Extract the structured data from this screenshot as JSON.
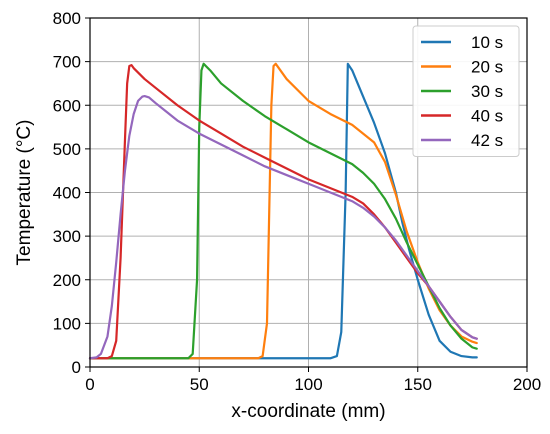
{
  "chart_data": {
    "type": "line",
    "title": "",
    "xlabel": "x-coordinate (mm)",
    "ylabel": "Temperature (°C)",
    "xlim": [
      0,
      200
    ],
    "ylim": [
      0,
      800
    ],
    "xticks": [
      0,
      50,
      100,
      150,
      200
    ],
    "yticks": [
      0,
      100,
      200,
      300,
      400,
      500,
      600,
      700,
      800
    ],
    "grid": true,
    "legend_position": "top-right",
    "series": [
      {
        "name": "10 s",
        "color": "#1f77b4",
        "x": [
          0,
          100,
          110,
          113,
          115,
          117,
          118,
          120,
          125,
          130,
          135,
          140,
          143,
          146,
          150,
          155,
          160,
          165,
          170,
          175,
          177
        ],
        "y": [
          20,
          20,
          20,
          25,
          80,
          400,
          695,
          680,
          620,
          560,
          490,
          400,
          330,
          270,
          200,
          120,
          60,
          35,
          25,
          22,
          22
        ]
      },
      {
        "name": "20 s",
        "color": "#ff7f0e",
        "x": [
          0,
          70,
          77,
          79,
          81,
          82,
          83,
          84,
          85,
          90,
          100,
          110,
          120,
          130,
          135,
          140,
          145,
          150,
          155,
          160,
          165,
          170,
          175,
          177
        ],
        "y": [
          20,
          20,
          20,
          25,
          100,
          350,
          600,
          690,
          695,
          660,
          610,
          580,
          555,
          515,
          470,
          395,
          310,
          240,
          180,
          130,
          95,
          70,
          58,
          55
        ]
      },
      {
        "name": "30 s",
        "color": "#2ca02c",
        "x": [
          0,
          40,
          45,
          47,
          49,
          50,
          51,
          52,
          55,
          60,
          70,
          80,
          90,
          100,
          110,
          120,
          125,
          130,
          135,
          140,
          145,
          150,
          155,
          160,
          165,
          170,
          175,
          177
        ],
        "y": [
          20,
          20,
          20,
          30,
          200,
          550,
          680,
          695,
          680,
          650,
          610,
          575,
          545,
          515,
          490,
          465,
          445,
          420,
          385,
          340,
          285,
          235,
          185,
          135,
          95,
          65,
          45,
          42
        ]
      },
      {
        "name": "40 s",
        "color": "#d62728",
        "x": [
          0,
          8,
          10,
          12,
          14,
          16,
          17,
          18,
          19,
          20,
          25,
          30,
          40,
          50,
          60,
          70,
          80,
          90,
          100,
          110,
          120,
          125,
          130,
          135,
          140,
          145,
          150,
          155,
          160,
          165,
          170,
          175,
          177
        ],
        "y": [
          20,
          20,
          25,
          60,
          250,
          520,
          650,
          690,
          692,
          685,
          660,
          640,
          600,
          565,
          535,
          505,
          480,
          455,
          430,
          410,
          390,
          375,
          350,
          320,
          285,
          250,
          215,
          185,
          150,
          115,
          85,
          68,
          65
        ]
      },
      {
        "name": "42 s",
        "color": "#9467bd",
        "x": [
          0,
          3,
          5,
          8,
          10,
          12,
          14,
          16,
          18,
          20,
          22,
          24,
          25,
          27,
          30,
          35,
          40,
          50,
          60,
          70,
          80,
          90,
          100,
          110,
          120,
          125,
          130,
          135,
          140,
          145,
          150,
          155,
          160,
          165,
          170,
          175,
          177
        ],
        "y": [
          20,
          22,
          30,
          70,
          140,
          240,
          350,
          450,
          530,
          580,
          610,
          620,
          621,
          618,
          605,
          585,
          565,
          535,
          510,
          485,
          460,
          440,
          420,
          400,
          380,
          365,
          345,
          320,
          290,
          255,
          220,
          185,
          150,
          115,
          85,
          68,
          65
        ]
      }
    ]
  }
}
